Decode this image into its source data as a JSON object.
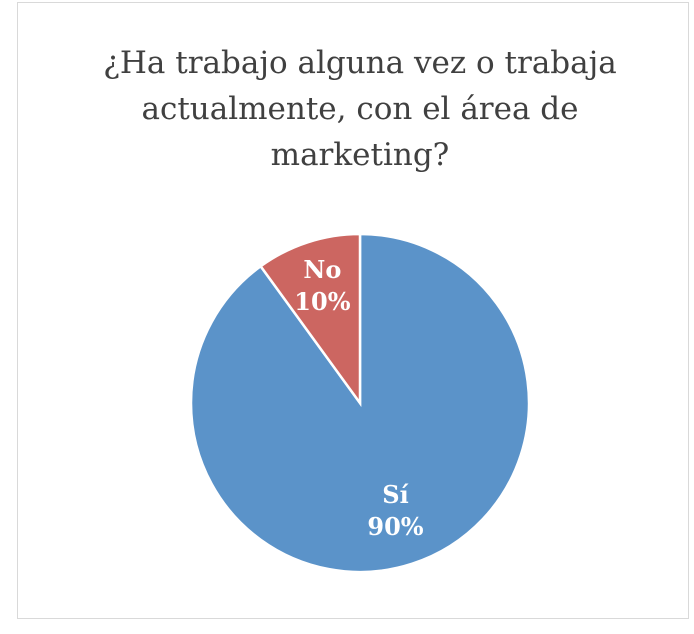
{
  "chart_data": {
    "type": "pie",
    "title": "¿Ha trabajo alguna vez o trabaja actualmente, con el área de marketing?",
    "categories": [
      "Sí",
      "No"
    ],
    "values": [
      90,
      10
    ],
    "value_labels": [
      "90%",
      "10%"
    ],
    "colors": [
      "#5b93c9",
      "#cc6661"
    ]
  }
}
